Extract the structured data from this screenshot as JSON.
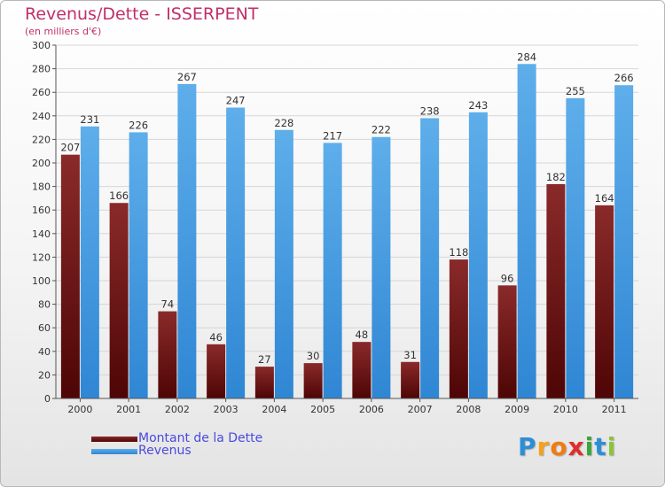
{
  "title": "Revenus/Dette - ISSERPENT",
  "subtitle": "(en milliers d'€)",
  "colors": {
    "title": "#c0306a",
    "dette_top": "#8a2a2a",
    "dette_bottom": "#4e0505",
    "revenus_top": "#5eaeea",
    "revenus_bottom": "#2f86d3",
    "legend_text": "#4a4adf"
  },
  "legend": {
    "dette_label": "Montant de la Dette",
    "revenus_label": "Revenus"
  },
  "logo": {
    "letters": [
      "P",
      "r",
      "o",
      "x",
      "i",
      "t",
      "i"
    ],
    "colors": [
      "#2c8fd6",
      "#f2a21b",
      "#f07c12",
      "#e02d2d",
      "#3aa63a",
      "#2c8fd6",
      "#8bc43a"
    ]
  },
  "chart_data": {
    "type": "bar",
    "title": "Revenus/Dette - ISSERPENT",
    "subtitle": "(en milliers d'€)",
    "categories": [
      "2000",
      "2001",
      "2002",
      "2003",
      "2004",
      "2005",
      "2006",
      "2007",
      "2008",
      "2009",
      "2010",
      "2011"
    ],
    "series": [
      {
        "name": "Montant de la Dette",
        "values": [
          207,
          166,
          74,
          46,
          27,
          30,
          48,
          31,
          118,
          96,
          182,
          164
        ]
      },
      {
        "name": "Revenus",
        "values": [
          231,
          226,
          267,
          247,
          228,
          217,
          222,
          238,
          243,
          284,
          255,
          266
        ]
      }
    ],
    "ylim": [
      0,
      300
    ],
    "yticks": [
      0,
      20,
      40,
      60,
      80,
      100,
      120,
      140,
      160,
      180,
      200,
      220,
      240,
      260,
      280,
      300
    ],
    "grid": true,
    "legend_position": "bottom-left"
  }
}
